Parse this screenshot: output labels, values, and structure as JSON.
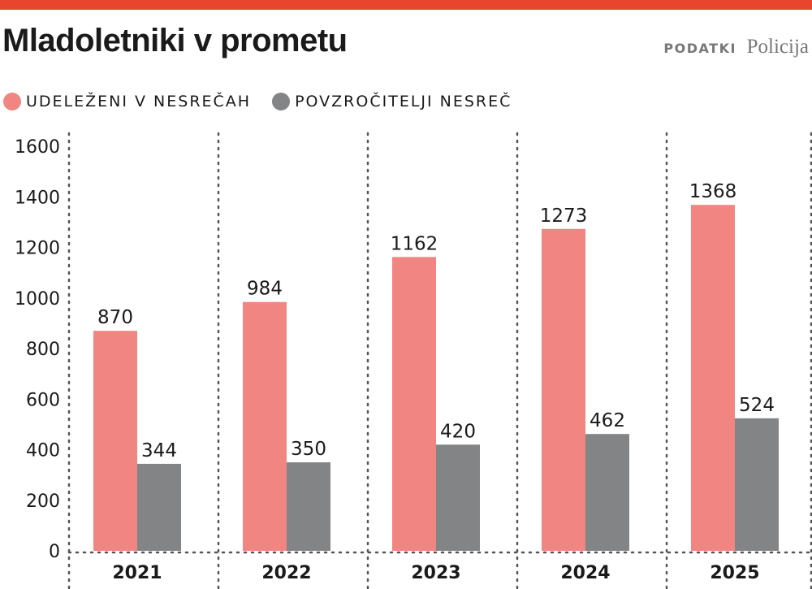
{
  "header": {
    "title": "Mladoletniki v prometu",
    "source_label": "PODATKI",
    "source_name": "Policija"
  },
  "legend": [
    {
      "label": "UDELEŽENI V NESREČAH",
      "color": "#f08581"
    },
    {
      "label": "POVZROČITELJI NESREČ",
      "color": "#838486"
    }
  ],
  "colors": {
    "accent_bar": "#e8452f",
    "series1": "#f08581",
    "series2": "#838486"
  },
  "chart_data": {
    "type": "bar",
    "title": "Mladoletniki v prometu",
    "categories": [
      "2021",
      "2022",
      "2023",
      "2024",
      "2025"
    ],
    "series": [
      {
        "name": "UDELEŽENI V NESREČAH",
        "values": [
          870,
          984,
          1162,
          1273,
          1368
        ]
      },
      {
        "name": "POVZROČITELJI NESREČ",
        "values": [
          344,
          350,
          420,
          462,
          524
        ]
      }
    ],
    "ylim": [
      0,
      1600
    ],
    "yticks": [
      0,
      200,
      400,
      600,
      800,
      1000,
      1200,
      1400,
      1600
    ],
    "grid": "vertical dotted separators",
    "legend_position": "top-left"
  }
}
